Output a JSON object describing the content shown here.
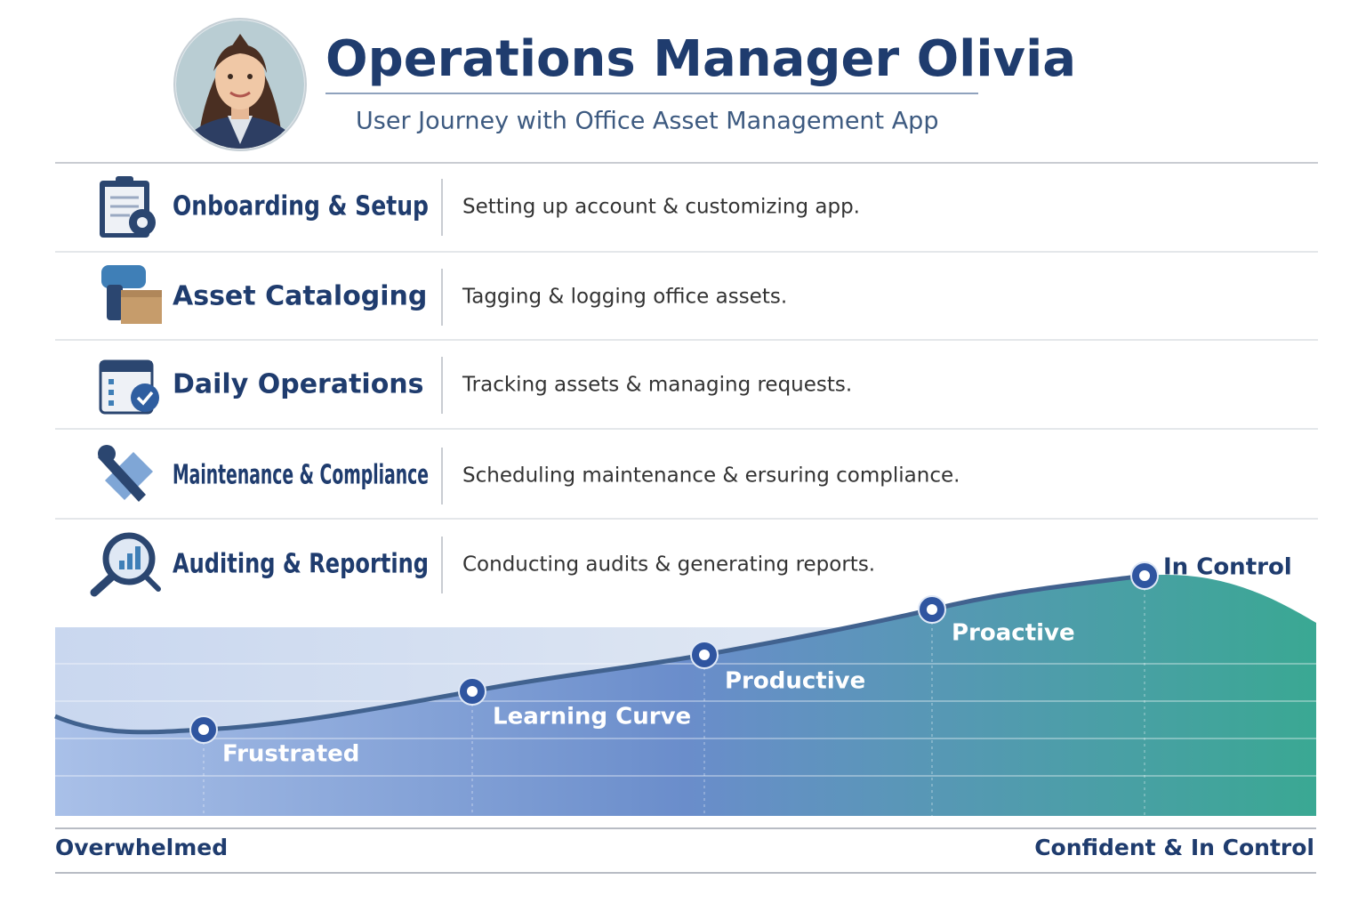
{
  "header": {
    "title": "Operations Manager Olivia",
    "subtitle": "User Journey with Office Asset Management App"
  },
  "stages": [
    {
      "title": "Onboarding & Setup",
      "description": "Setting up account & customizing app."
    },
    {
      "title": "Asset Cataloging",
      "description": "Tagging & logging office assets."
    },
    {
      "title": "Daily Operations",
      "description": "Tracking assets & managing requests."
    },
    {
      "title": "Maintenance & Compliance",
      "description": "Scheduling maintenance & ersuring compliance."
    },
    {
      "title": "Auditing & Reporting",
      "description": "Conducting audits & generating reports."
    }
  ],
  "journey": {
    "points": [
      {
        "label": "Frustrated"
      },
      {
        "label": "Learning Curve"
      },
      {
        "label": "Productive"
      },
      {
        "label": "Proactive"
      },
      {
        "label": "In Control"
      }
    ],
    "start_label": "Overwhelmed",
    "end_label": "Confident & In Control"
  }
}
